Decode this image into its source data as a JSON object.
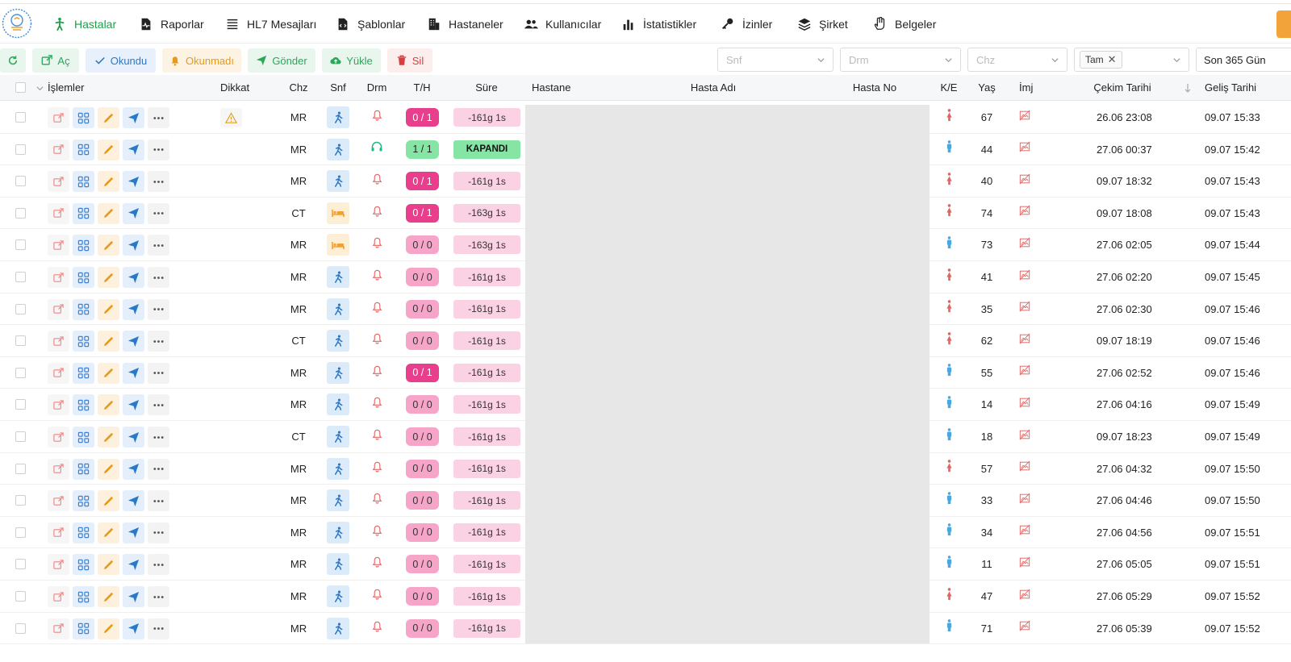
{
  "nav": {
    "items": [
      {
        "key": "hastalar",
        "label": "Hastalar",
        "icon": "walking-person-icon",
        "active": true
      },
      {
        "key": "raporlar",
        "label": "Raporlar",
        "icon": "report-pulse-icon"
      },
      {
        "key": "hl7",
        "label": "HL7 Mesajları",
        "icon": "list-lines-icon"
      },
      {
        "key": "sablonlar",
        "label": "Şablonlar",
        "icon": "code-file-icon"
      },
      {
        "key": "hastaneler",
        "label": "Hastaneler",
        "icon": "building-icon"
      },
      {
        "key": "kullanicilar",
        "label": "Kullanıcılar",
        "icon": "users-icon"
      },
      {
        "key": "istatistikler",
        "label": "İstatistikler",
        "icon": "bar-chart-icon"
      },
      {
        "key": "izinler",
        "label": "İzinler",
        "icon": "key-icon"
      },
      {
        "key": "sirket",
        "label": "Şirket",
        "icon": "layers-icon"
      },
      {
        "key": "belgeler",
        "label": "Belgeler",
        "icon": "hand-icon"
      }
    ]
  },
  "toolbar": {
    "ac": "Aç",
    "okundu": "Okundu",
    "okunmadi": "Okunmadı",
    "gonder": "Gönder",
    "yukle": "Yükle",
    "sil": "Sil"
  },
  "filters": {
    "snf_placeholder": "Snf",
    "drm_placeholder": "Drm",
    "chz_placeholder": "Chz",
    "tam_tag": "Tam",
    "period": "Son 365 Gün"
  },
  "columns": {
    "islemler": "İşlemler",
    "dikkat": "Dikkat",
    "chz": "Chz",
    "snf": "Snf",
    "drm": "Drm",
    "th": "T/H",
    "sure": "Süre",
    "hastane": "Hastane",
    "hasta_adi": "Hasta Adı",
    "hasta_no": "Hasta No",
    "ke": "K/E",
    "yas": "Yaş",
    "imj": "İmj",
    "cekim": "Çekim Tarihi",
    "gelis": "Geliş Tarihi"
  },
  "colors": {
    "accent_green": "#1e9e4a",
    "badge_pink_strong": "#e83e8c",
    "badge_pink_light": "#f6a5c8",
    "closed_green": "#86e5a4",
    "female_red": "#e06666",
    "male_blue": "#4aa8e0"
  },
  "rows": [
    {
      "warn": true,
      "chz": "MR",
      "snf": "walk",
      "drm": "bell",
      "th": "0 / 1",
      "th_type": "full",
      "sure": "-161g 1s",
      "sure_type": "pink",
      "ke": "F",
      "yas": "67",
      "cekim": "26.06 23:08",
      "gelis": "09.07 15:33"
    },
    {
      "warn": false,
      "chz": "MR",
      "snf": "walk",
      "drm": "headset",
      "th": "1 / 1",
      "th_type": "done",
      "sure": "KAPANDI",
      "sure_type": "green",
      "ke": "M",
      "yas": "44",
      "cekim": "27.06 00:37",
      "gelis": "09.07 15:42"
    },
    {
      "warn": false,
      "chz": "MR",
      "snf": "walk",
      "drm": "bell",
      "th": "0 / 1",
      "th_type": "full",
      "sure": "-161g 1s",
      "sure_type": "pink",
      "ke": "F",
      "yas": "40",
      "cekim": "09.07 18:32",
      "gelis": "09.07 15:43"
    },
    {
      "warn": false,
      "chz": "CT",
      "snf": "bed",
      "drm": "bell",
      "th": "0 / 1",
      "th_type": "full",
      "sure": "-163g 1s",
      "sure_type": "pink",
      "ke": "F",
      "yas": "74",
      "cekim": "09.07 18:08",
      "gelis": "09.07 15:43"
    },
    {
      "warn": false,
      "chz": "MR",
      "snf": "bed",
      "drm": "bell",
      "th": "0 / 0",
      "th_type": "zero",
      "sure": "-163g 1s",
      "sure_type": "pink",
      "ke": "M",
      "yas": "73",
      "cekim": "27.06 02:05",
      "gelis": "09.07 15:44"
    },
    {
      "warn": false,
      "chz": "MR",
      "snf": "walk",
      "drm": "bell",
      "th": "0 / 0",
      "th_type": "zero",
      "sure": "-161g 1s",
      "sure_type": "pink",
      "ke": "F",
      "yas": "41",
      "cekim": "27.06 02:20",
      "gelis": "09.07 15:45"
    },
    {
      "warn": false,
      "chz": "MR",
      "snf": "walk",
      "drm": "bell",
      "th": "0 / 0",
      "th_type": "zero",
      "sure": "-161g 1s",
      "sure_type": "pink",
      "ke": "F",
      "yas": "35",
      "cekim": "27.06 02:30",
      "gelis": "09.07 15:46"
    },
    {
      "warn": false,
      "chz": "CT",
      "snf": "walk",
      "drm": "bell",
      "th": "0 / 0",
      "th_type": "zero",
      "sure": "-161g 1s",
      "sure_type": "pink",
      "ke": "F",
      "yas": "62",
      "cekim": "09.07 18:19",
      "gelis": "09.07 15:46"
    },
    {
      "warn": false,
      "chz": "MR",
      "snf": "walk",
      "drm": "bell",
      "th": "0 / 1",
      "th_type": "full",
      "sure": "-161g 1s",
      "sure_type": "pink",
      "ke": "M",
      "yas": "55",
      "cekim": "27.06 02:52",
      "gelis": "09.07 15:46"
    },
    {
      "warn": false,
      "chz": "MR",
      "snf": "walk",
      "drm": "bell",
      "th": "0 / 0",
      "th_type": "zero",
      "sure": "-161g 1s",
      "sure_type": "pink",
      "ke": "M",
      "yas": "14",
      "cekim": "27.06 04:16",
      "gelis": "09.07 15:49"
    },
    {
      "warn": false,
      "chz": "CT",
      "snf": "walk",
      "drm": "bell",
      "th": "0 / 0",
      "th_type": "zero",
      "sure": "-161g 1s",
      "sure_type": "pink",
      "ke": "M",
      "yas": "18",
      "cekim": "09.07 18:23",
      "gelis": "09.07 15:49"
    },
    {
      "warn": false,
      "chz": "MR",
      "snf": "walk",
      "drm": "bell",
      "th": "0 / 0",
      "th_type": "zero",
      "sure": "-161g 1s",
      "sure_type": "pink",
      "ke": "F",
      "yas": "57",
      "cekim": "27.06 04:32",
      "gelis": "09.07 15:50"
    },
    {
      "warn": false,
      "chz": "MR",
      "snf": "walk",
      "drm": "bell",
      "th": "0 / 0",
      "th_type": "zero",
      "sure": "-161g 1s",
      "sure_type": "pink",
      "ke": "M",
      "yas": "33",
      "cekim": "27.06 04:46",
      "gelis": "09.07 15:50"
    },
    {
      "warn": false,
      "chz": "MR",
      "snf": "walk",
      "drm": "bell",
      "th": "0 / 0",
      "th_type": "zero",
      "sure": "-161g 1s",
      "sure_type": "pink",
      "ke": "M",
      "yas": "34",
      "cekim": "27.06 04:56",
      "gelis": "09.07 15:51"
    },
    {
      "warn": false,
      "chz": "MR",
      "snf": "walk",
      "drm": "bell",
      "th": "0 / 0",
      "th_type": "zero",
      "sure": "-161g 1s",
      "sure_type": "pink",
      "ke": "M",
      "yas": "11",
      "cekim": "27.06 05:05",
      "gelis": "09.07 15:51"
    },
    {
      "warn": false,
      "chz": "MR",
      "snf": "walk",
      "drm": "bell",
      "th": "0 / 0",
      "th_type": "zero",
      "sure": "-161g 1s",
      "sure_type": "pink",
      "ke": "F",
      "yas": "47",
      "cekim": "27.06 05:29",
      "gelis": "09.07 15:52"
    },
    {
      "warn": false,
      "chz": "MR",
      "snf": "walk",
      "drm": "bell",
      "th": "0 / 0",
      "th_type": "zero",
      "sure": "-161g 1s",
      "sure_type": "pink",
      "ke": "M",
      "yas": "71",
      "cekim": "27.06 05:39",
      "gelis": "09.07 15:52"
    }
  ]
}
